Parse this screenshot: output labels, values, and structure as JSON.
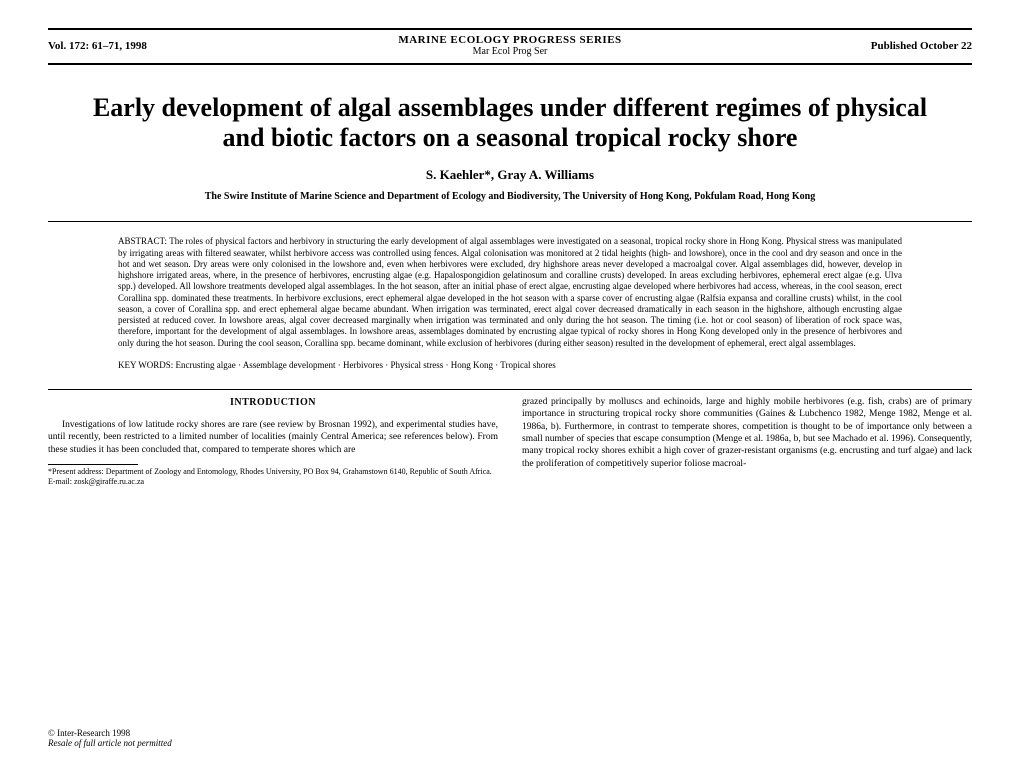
{
  "header": {
    "vol_info": "Vol. 172: 61–71, 1998",
    "journal_upper": "MARINE ECOLOGY PROGRESS SERIES",
    "journal_lower": "Mar Ecol Prog Ser",
    "pub_date": "Published October 22"
  },
  "title": "Early development of algal assemblages under different regimes of physical and biotic factors on a seasonal tropical rocky shore",
  "authors": "S. Kaehler*, Gray A. Williams",
  "affiliation": "The Swire Institute of Marine Science and Department of Ecology and Biodiversity, The University of Hong Kong, Pokfulam Road, Hong Kong",
  "abstract_label": "ABSTRACT: ",
  "abstract_body": "The roles of physical factors and herbivory in structuring the early development of algal assemblages were investigated on a seasonal, tropical rocky shore in Hong Kong. Physical stress was manipulated by irrigating areas with filtered seawater, whilst herbivore access was controlled using fences. Algal colonisation was monitored at 2 tidal heights (high- and lowshore), once in the cool and dry season and once in the hot and wet season. Dry areas were only colonised in the lowshore and, even when herbivores were excluded, dry highshore areas never developed a macroalgal cover. Algal assemblages did, however, develop in highshore irrigated areas, where, in the presence of herbivores, encrusting algae (e.g. Hapalospongidion gelatinosum and coralline crusts) developed. In areas excluding herbivores, ephemeral erect algae (e.g. Ulva spp.) developed. All lowshore treatments developed algal assemblages. In the hot season, after an initial phase of erect algae, encrusting algae developed where herbivores had access, whereas, in the cool season, erect Corallina spp. dominated these treatments. In herbivore exclusions, erect ephemeral algae developed in the hot season with a sparse cover of encrusting algae (Ralfsia expansa and coralline crusts) whilst, in the cool season, a cover of Corallina spp. and erect ephemeral algae became abundant. When irrigation was terminated, erect algal cover decreased dramatically in each season in the highshore, although encrusting algae persisted at reduced cover. In lowshore areas, algal cover decreased marginally when irrigation was terminated and only during the hot season. The timing (i.e. hot or cool season) of liberation of rock space was, therefore, important for the development of algal assemblages. In lowshore areas, assemblages dominated by encrusting algae typical of rocky shores in Hong Kong developed only in the presence of herbivores and only during the hot season. During the cool season, Corallina spp. became dominant, while exclusion of herbivores (during either season) resulted in the development of ephemeral, erect algal assemblages.",
  "keywords_label": "KEY WORDS: ",
  "keywords_body": "Encrusting algae · Assemblage development · Herbivores · Physical stress · Hong Kong · Tropical shores",
  "intro_heading": "INTRODUCTION",
  "intro_left": "Investigations of low latitude rocky shores are rare (see review by Brosnan 1992), and experimental studies have, until recently, been restricted to a limited number of localities (mainly Central America; see references below). From these studies it has been concluded that, compared to temperate shores which are",
  "intro_right": "grazed principally by molluscs and echinoids, large and highly mobile herbivores (e.g. fish, crabs) are of primary importance in structuring tropical rocky shore communities (Gaines & Lubchenco 1982, Menge 1982, Menge et al. 1986a, b). Furthermore, in contrast to temperate shores, competition is thought to be of importance only between a small number of species that escape consumption (Menge et al. 1986a, b, but see Machado et al. 1996). Consequently, many tropical rocky shores exhibit a high cover of grazer-resistant organisms (e.g. encrusting and turf algae) and lack the proliferation of competitively superior foliose macroal-",
  "footnote": "*Present address: Department of Zoology and Entomology, Rhodes University, PO Box 94, Grahamstown 6140, Republic of South Africa. E-mail: zosk@giraffe.ru.ac.za",
  "bottom": {
    "inter": "© Inter-Research 1998",
    "resale": "Resale of full article not permitted"
  }
}
